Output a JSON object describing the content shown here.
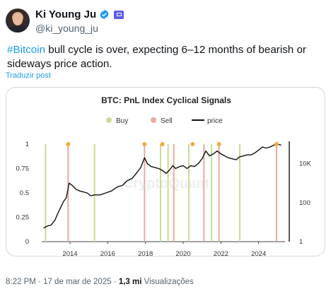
{
  "author": {
    "name": "Ki Young Ju",
    "handle": "@ki_young_ju"
  },
  "tweet": {
    "hashtag": "#Bitcoin",
    "text_rest": " bull cycle is over, expecting 6–12 months of bearish or sideways price action.",
    "translate_label": "Traduzir post"
  },
  "footer": {
    "time": "8:22 PM",
    "separator": " · ",
    "date": "17 de mar de 2025",
    "separator2": " · ",
    "views_count": "1,3 mi",
    "views_label": " Visualizações"
  },
  "colors": {
    "buy": "#c8dc96",
    "sell": "#e9ab9a",
    "price": "#111111",
    "dot": "#f2a93b",
    "link": "#1d9bf0"
  },
  "chart_data": {
    "type": "line",
    "title": "BTC: PnL Index Cyclical Signals",
    "legend": {
      "placement": "top",
      "entries": [
        {
          "name": "Buy",
          "marker": "dot"
        },
        {
          "name": "Sell",
          "marker": "dot"
        },
        {
          "name": "price",
          "marker": "line"
        }
      ]
    },
    "watermark": "CryptoQuant",
    "x_axis": {
      "ticks": [
        "2014",
        "2016",
        "2018",
        "2020",
        "2022",
        "2024"
      ],
      "range": [
        2012.5,
        2025.4
      ]
    },
    "y_left": {
      "ticks": [
        "0",
        "0.25",
        "0.5",
        "0.75",
        "1"
      ],
      "range": [
        0,
        1
      ]
    },
    "y_right": {
      "ticks": [
        "1",
        "100",
        "10K"
      ],
      "scale": "log",
      "range": [
        1,
        100000
      ]
    },
    "buy_signals": [
      2012.7,
      2015.3,
      2018.8,
      2019.2,
      2020.3,
      2021.5,
      2023.0
    ],
    "sell_signals": [
      2013.9,
      2017.95,
      2019.5,
      2021.1,
      2021.9,
      2024.95
    ],
    "peak_markers": [
      2013.9,
      2017.95,
      2018.9,
      2020.5,
      2021.9,
      2024.95
    ],
    "price_path": [
      [
        2012.6,
        0.14
      ],
      [
        2012.8,
        0.16
      ],
      [
        2013.0,
        0.17
      ],
      [
        2013.2,
        0.22
      ],
      [
        2013.35,
        0.29
      ],
      [
        2013.5,
        0.35
      ],
      [
        2013.65,
        0.41
      ],
      [
        2013.8,
        0.45
      ],
      [
        2013.95,
        0.6
      ],
      [
        2014.1,
        0.58
      ],
      [
        2014.3,
        0.54
      ],
      [
        2014.5,
        0.52
      ],
      [
        2014.7,
        0.51
      ],
      [
        2014.9,
        0.5
      ],
      [
        2015.1,
        0.47
      ],
      [
        2015.3,
        0.48
      ],
      [
        2015.6,
        0.48
      ],
      [
        2015.9,
        0.5
      ],
      [
        2016.2,
        0.52
      ],
      [
        2016.5,
        0.56
      ],
      [
        2016.8,
        0.58
      ],
      [
        2017.0,
        0.62
      ],
      [
        2017.3,
        0.65
      ],
      [
        2017.55,
        0.71
      ],
      [
        2017.75,
        0.76
      ],
      [
        2017.95,
        0.86
      ],
      [
        2018.1,
        0.8
      ],
      [
        2018.3,
        0.77
      ],
      [
        2018.5,
        0.76
      ],
      [
        2018.7,
        0.75
      ],
      [
        2018.9,
        0.73
      ],
      [
        2019.1,
        0.7
      ],
      [
        2019.3,
        0.74
      ],
      [
        2019.45,
        0.78
      ],
      [
        2019.6,
        0.75
      ],
      [
        2019.8,
        0.77
      ],
      [
        2020.0,
        0.78
      ],
      [
        2020.2,
        0.75
      ],
      [
        2020.4,
        0.78
      ],
      [
        2020.6,
        0.77
      ],
      [
        2020.8,
        0.8
      ],
      [
        2021.0,
        0.85
      ],
      [
        2021.2,
        0.93
      ],
      [
        2021.4,
        0.88
      ],
      [
        2021.6,
        0.9
      ],
      [
        2021.8,
        0.93
      ],
      [
        2022.0,
        0.9
      ],
      [
        2022.2,
        0.88
      ],
      [
        2022.4,
        0.86
      ],
      [
        2022.6,
        0.85
      ],
      [
        2022.8,
        0.84
      ],
      [
        2023.0,
        0.87
      ],
      [
        2023.2,
        0.88
      ],
      [
        2023.4,
        0.89
      ],
      [
        2023.6,
        0.89
      ],
      [
        2023.8,
        0.91
      ],
      [
        2024.0,
        0.94
      ],
      [
        2024.2,
        0.97
      ],
      [
        2024.4,
        0.96
      ],
      [
        2024.6,
        0.97
      ],
      [
        2024.8,
        0.99
      ],
      [
        2025.0,
        1.0
      ],
      [
        2025.2,
        0.99
      ]
    ]
  }
}
